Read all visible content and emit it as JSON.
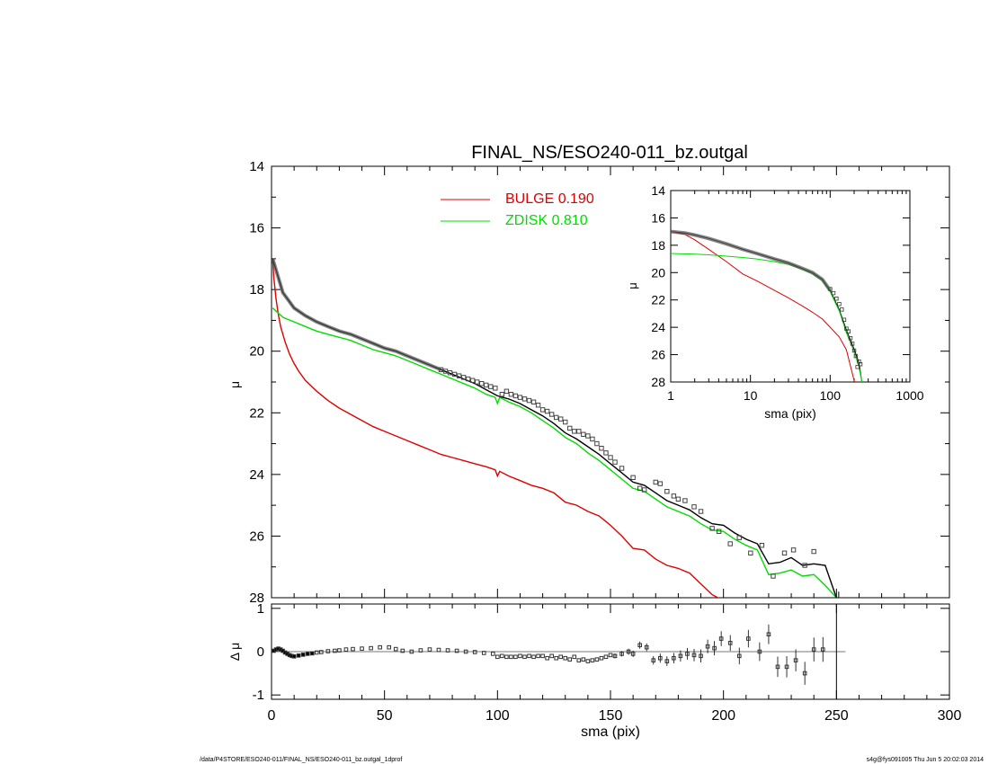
{
  "footer": {
    "path": "/data/P4STORE/ESO240-011/FINAL_NS/ESO240-011_bz.outgal_1dprof",
    "stamp": "s4g@fys091005  Thu Jun  5 20:02:03 2014"
  },
  "chart_data": [
    {
      "type": "line",
      "title": "FINAL_NS/ESO240-011_bz.outgal",
      "xlabel": "",
      "ylabel": "μ",
      "xlim": [
        0,
        300
      ],
      "ylim": [
        28,
        14
      ],
      "y_inverted": true,
      "yticks": [
        14,
        16,
        18,
        20,
        22,
        24,
        26,
        28
      ],
      "grid": false,
      "legend_position": "top-center",
      "series": [
        {
          "name": "BULGE  0.190",
          "color": "#e00000",
          "x": [
            0.5,
            1,
            2,
            3,
            4,
            6,
            8,
            10,
            12,
            15,
            20,
            25,
            30,
            35,
            40,
            45,
            50,
            55,
            60,
            65,
            70,
            75,
            80,
            85,
            90,
            95,
            99,
            100,
            101,
            105,
            110,
            115,
            120,
            125,
            130,
            135,
            140,
            145,
            150,
            155,
            160,
            165,
            170,
            175,
            180,
            185,
            190,
            195,
            200,
            205,
            210
          ],
          "y": [
            17.0,
            17.6,
            18.3,
            18.8,
            19.2,
            19.7,
            20.1,
            20.4,
            20.65,
            20.95,
            21.3,
            21.6,
            21.85,
            22.05,
            22.25,
            22.45,
            22.6,
            22.75,
            22.9,
            23.05,
            23.2,
            23.35,
            23.45,
            23.55,
            23.65,
            23.75,
            23.85,
            24.05,
            23.9,
            24.05,
            24.2,
            24.35,
            24.45,
            24.6,
            24.9,
            25.0,
            25.2,
            25.35,
            25.65,
            26.0,
            26.4,
            26.45,
            26.75,
            26.95,
            27.05,
            27.2,
            27.55,
            27.9,
            28.1,
            28.35,
            28.2
          ]
        },
        {
          "name": "ZDISK  0.810",
          "color": "#00dd00",
          "x": [
            0.5,
            5,
            10,
            15,
            20,
            25,
            30,
            35,
            40,
            45,
            50,
            55,
            60,
            65,
            70,
            75,
            80,
            85,
            90,
            95,
            99,
            100,
            101,
            105,
            110,
            115,
            120,
            125,
            130,
            135,
            140,
            145,
            150,
            155,
            160,
            165,
            170,
            175,
            180,
            185,
            190,
            195,
            200,
            205,
            210,
            215,
            220,
            225,
            230,
            235,
            240,
            245,
            250
          ],
          "y": [
            18.6,
            18.9,
            19.05,
            19.2,
            19.35,
            19.45,
            19.55,
            19.65,
            19.8,
            19.95,
            20.05,
            20.15,
            20.3,
            20.45,
            20.6,
            20.75,
            20.9,
            21.05,
            21.2,
            21.4,
            21.5,
            21.7,
            21.5,
            21.65,
            21.8,
            22.0,
            22.25,
            22.5,
            22.8,
            23.0,
            23.3,
            23.55,
            23.85,
            24.15,
            24.45,
            24.55,
            24.8,
            25.05,
            25.2,
            25.35,
            25.6,
            25.8,
            25.85,
            26.1,
            26.3,
            26.45,
            27.25,
            27.2,
            27.1,
            27.3,
            27.25,
            27.6,
            28.0
          ]
        },
        {
          "name": "",
          "color": "#000000",
          "x": [
            0.5,
            5,
            10,
            15,
            20,
            25,
            30,
            35,
            40,
            45,
            50,
            55,
            60,
            65,
            70,
            75,
            80,
            85,
            90,
            95,
            100,
            105,
            110,
            115,
            120,
            125,
            130,
            135,
            140,
            145,
            150,
            155,
            160,
            165,
            170,
            175,
            180,
            185,
            190,
            195,
            200,
            205,
            210,
            215,
            220,
            225,
            230,
            235,
            240,
            245,
            250
          ],
          "y": [
            17.0,
            18.1,
            18.6,
            18.85,
            19.05,
            19.2,
            19.35,
            19.45,
            19.6,
            19.75,
            19.9,
            20.0,
            20.15,
            20.3,
            20.45,
            20.6,
            20.75,
            20.9,
            21.05,
            21.25,
            21.45,
            21.55,
            21.7,
            21.9,
            22.1,
            22.35,
            22.65,
            22.85,
            23.1,
            23.35,
            23.65,
            23.95,
            24.25,
            24.35,
            24.6,
            24.85,
            25.0,
            25.15,
            25.4,
            25.6,
            25.65,
            25.9,
            26.1,
            26.25,
            26.9,
            26.85,
            26.7,
            26.95,
            26.9,
            26.95,
            28.0
          ]
        },
        {
          "name": "",
          "type": "scatter",
          "marker": "square",
          "color": "#000000",
          "x": [
            75,
            77,
            79,
            81,
            83,
            85,
            87,
            89,
            91,
            93,
            95,
            97,
            99,
            102,
            104,
            106,
            108,
            110,
            112,
            114,
            116,
            118,
            120,
            122,
            124,
            126,
            128,
            130,
            132,
            134,
            136,
            138,
            140,
            142,
            144,
            146,
            148,
            150,
            152,
            155,
            160,
            163,
            165,
            170,
            172,
            175,
            178,
            180,
            183,
            187,
            190,
            195,
            198,
            203,
            207,
            212,
            217,
            222,
            227,
            231,
            236,
            240
          ],
          "y": [
            20.6,
            20.65,
            20.7,
            20.75,
            20.8,
            20.85,
            20.9,
            20.95,
            21.0,
            21.05,
            21.1,
            21.15,
            21.2,
            21.4,
            21.3,
            21.4,
            21.45,
            21.5,
            21.55,
            21.6,
            21.65,
            21.75,
            21.9,
            21.95,
            22.05,
            22.15,
            22.2,
            22.3,
            22.5,
            22.6,
            22.6,
            22.7,
            22.75,
            22.85,
            23.0,
            23.15,
            23.3,
            23.45,
            23.6,
            23.8,
            24.1,
            24.45,
            24.5,
            24.25,
            24.3,
            24.55,
            24.7,
            24.8,
            24.85,
            25.05,
            25.2,
            25.75,
            25.85,
            26.25,
            26.05,
            26.55,
            26.3,
            27.3,
            26.55,
            26.45,
            26.95,
            26.5
          ]
        }
      ]
    },
    {
      "type": "scatter",
      "xlabel": "sma (pix)",
      "ylabel": "Δ μ",
      "xlim": [
        0,
        300
      ],
      "ylim": [
        -1.1,
        1.1
      ],
      "yticks": [
        -1,
        0,
        1
      ],
      "xticks": [
        0,
        50,
        100,
        150,
        200,
        250,
        300
      ],
      "grid": false,
      "reference_line": 0,
      "vertical_marker": 250,
      "series": [
        {
          "name": "",
          "x": [
            1,
            2,
            3,
            4,
            5,
            6,
            7,
            8,
            9,
            10,
            12,
            14,
            16,
            18,
            20,
            22,
            25,
            28,
            30,
            33,
            36,
            40,
            44,
            48,
            52,
            55,
            58,
            62,
            66,
            70,
            74,
            78,
            82,
            86,
            90,
            94,
            98,
            100,
            102,
            104,
            106,
            108,
            110,
            112,
            114,
            116,
            118,
            120,
            122,
            124,
            126,
            128,
            130,
            132,
            134,
            136,
            138,
            140,
            142,
            144,
            146,
            148,
            150,
            152,
            155,
            158,
            160,
            163,
            166,
            169,
            172,
            175,
            178,
            181,
            184,
            187,
            190,
            193,
            196,
            199,
            203,
            207,
            211,
            216,
            220,
            224,
            228,
            232,
            236,
            240,
            244
          ],
          "y": [
            0.02,
            0.05,
            0.07,
            0.05,
            0.02,
            -0.02,
            -0.05,
            -0.08,
            -0.1,
            -0.11,
            -0.09,
            -0.07,
            -0.05,
            -0.04,
            -0.02,
            -0.01,
            0.01,
            0.02,
            0.03,
            0.05,
            0.06,
            0.07,
            0.08,
            0.1,
            0.1,
            0.06,
            0.02,
            0.0,
            0.03,
            0.05,
            0.04,
            0.03,
            0.02,
            0.0,
            -0.01,
            -0.03,
            -0.05,
            -0.12,
            -0.1,
            -0.12,
            -0.12,
            -0.12,
            -0.1,
            -0.12,
            -0.1,
            -0.12,
            -0.1,
            -0.1,
            -0.15,
            -0.1,
            -0.15,
            -0.12,
            -0.15,
            -0.18,
            -0.12,
            -0.2,
            -0.18,
            -0.22,
            -0.2,
            -0.18,
            -0.15,
            -0.12,
            -0.08,
            -0.1,
            -0.05,
            0.0,
            -0.05,
            0.15,
            0.1,
            -0.2,
            -0.15,
            -0.22,
            -0.15,
            -0.1,
            -0.05,
            -0.08,
            -0.1,
            0.12,
            0.08,
            0.3,
            0.2,
            -0.1,
            0.3,
            0.0,
            0.4,
            -0.35,
            -0.35,
            -0.2,
            -0.5,
            0.05,
            0.05
          ]
        }
      ]
    },
    {
      "type": "line",
      "xlabel": "sma (pix)",
      "ylabel": "μ",
      "x_scale": "log",
      "xlim": [
        1,
        1000
      ],
      "ylim": [
        28,
        14
      ],
      "y_inverted": true,
      "xticks": [
        1,
        10,
        100,
        1000
      ],
      "yticks": [
        14,
        16,
        18,
        20,
        22,
        24,
        26,
        28
      ],
      "grid": false,
      "series": [
        {
          "name": "",
          "color": "#000000",
          "x": [
            1,
            1.5,
            2,
            3,
            5,
            8,
            12,
            20,
            30,
            45,
            60,
            80,
            100,
            130,
            160,
            200,
            230,
            250
          ],
          "y": [
            17.0,
            17.1,
            17.25,
            17.5,
            17.9,
            18.3,
            18.6,
            19.0,
            19.3,
            19.7,
            20.0,
            20.5,
            21.3,
            22.7,
            24.2,
            25.6,
            26.6,
            28.0
          ]
        },
        {
          "name": "",
          "color": "#e00000",
          "x": [
            1,
            1.5,
            2,
            3,
            5,
            8,
            12,
            20,
            30,
            45,
            60,
            80,
            100,
            130,
            160,
            200,
            215
          ],
          "y": [
            17.0,
            17.2,
            17.6,
            18.3,
            19.2,
            20.1,
            20.6,
            21.3,
            21.85,
            22.45,
            22.9,
            23.4,
            24.0,
            24.7,
            25.65,
            27.9,
            28.3
          ]
        },
        {
          "name": "",
          "color": "#00dd00",
          "x": [
            1,
            2,
            3,
            5,
            8,
            12,
            20,
            30,
            45,
            60,
            80,
            100,
            130,
            160,
            200,
            230,
            250
          ],
          "y": [
            18.6,
            18.65,
            18.7,
            18.8,
            18.9,
            19.0,
            19.2,
            19.4,
            19.75,
            20.1,
            20.6,
            21.4,
            22.8,
            24.4,
            25.8,
            26.9,
            28.0
          ]
        },
        {
          "name": "",
          "type": "scatter",
          "marker": "square",
          "color": "#000000",
          "x": [
            100,
            110,
            120,
            130,
            140,
            150,
            160,
            170,
            180,
            190,
            200,
            210,
            220,
            230,
            240
          ],
          "y": [
            21.2,
            21.5,
            21.9,
            22.3,
            22.7,
            23.45,
            24.1,
            24.3,
            24.8,
            25.2,
            25.7,
            26.1,
            26.9,
            26.5,
            26.7
          ]
        }
      ]
    }
  ]
}
